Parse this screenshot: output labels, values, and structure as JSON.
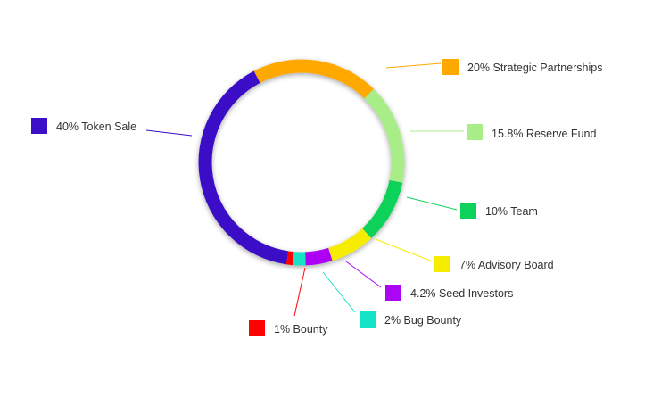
{
  "chart_data": {
    "type": "pie",
    "variant": "donut",
    "title": "",
    "slices": [
      {
        "label": "40% Token Sale",
        "value": 40,
        "color": "#3a0fc7"
      },
      {
        "label": "20% Strategic Partnerships",
        "value": 20,
        "color": "#fea800"
      },
      {
        "label": "15.8% Reserve Fund",
        "value": 15.8,
        "color": "#a8ed87"
      },
      {
        "label": "10% Team",
        "value": 10,
        "color": "#0cd25a"
      },
      {
        "label": "7% Advisory Board",
        "value": 7,
        "color": "#f6ec00"
      },
      {
        "label": "4.2% Seed Investors",
        "value": 4.2,
        "color": "#ab06f3"
      },
      {
        "label": "2% Bug Bounty",
        "value": 2,
        "color": "#14e3c7"
      },
      {
        "label": "1% Bounty",
        "value": 1,
        "color": "#fe0101"
      }
    ],
    "legend": "callout labels around ring"
  }
}
